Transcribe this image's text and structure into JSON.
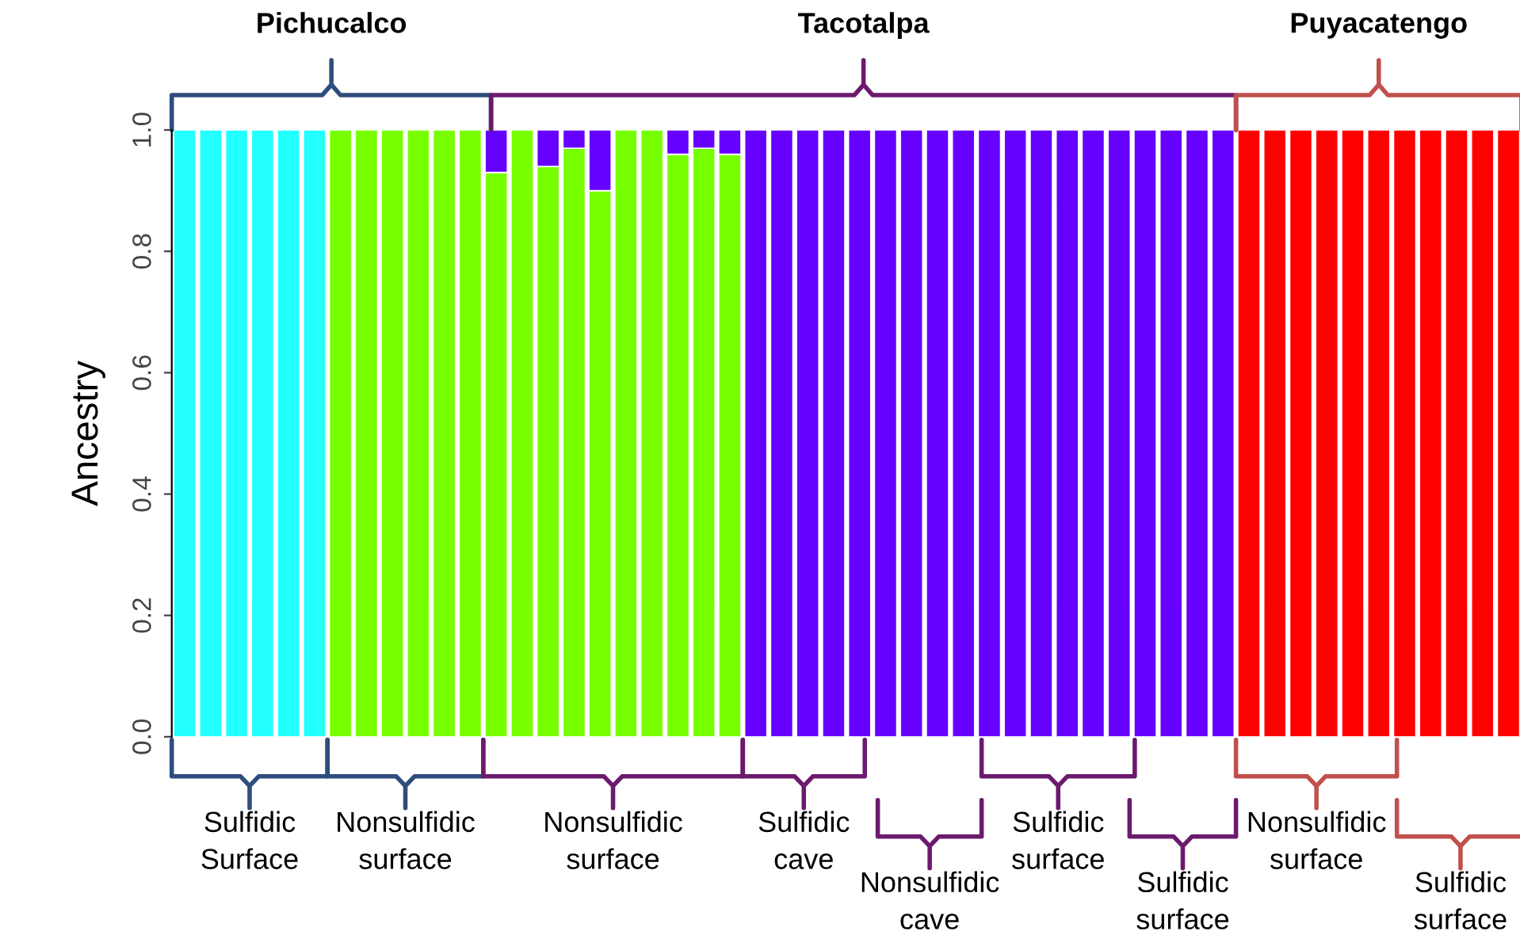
{
  "chart_data": {
    "type": "bar",
    "stacked": true,
    "ylabel": "Ancestry",
    "categories": [
      null,
      null,
      null,
      null,
      null,
      null,
      null,
      null,
      null,
      null,
      null,
      null,
      null,
      null,
      null,
      null,
      null,
      null,
      null,
      null,
      null,
      null,
      null,
      null,
      null,
      null,
      null,
      null,
      null,
      null,
      null,
      null,
      null,
      null,
      null,
      null,
      null,
      null,
      null,
      null,
      null,
      null,
      null,
      null,
      null,
      null,
      null,
      null,
      null,
      null,
      null,
      null
    ],
    "series": [
      {
        "color": "#22ffff",
        "values": [
          1,
          1,
          1,
          1,
          1,
          1,
          0,
          0,
          0,
          0,
          0,
          0,
          0,
          0,
          0,
          0,
          0,
          0,
          0,
          0,
          0,
          0,
          0,
          0,
          0,
          0,
          0,
          0,
          0,
          0,
          0,
          0,
          0,
          0,
          0,
          0,
          0,
          0,
          0,
          0,
          0,
          0,
          0,
          0,
          0,
          0,
          0,
          0,
          0,
          0,
          0,
          0
        ]
      },
      {
        "color": "#77ff00",
        "values": [
          0,
          0,
          0,
          0,
          0,
          0,
          1,
          1,
          1,
          1,
          1,
          1,
          0.93,
          1,
          0.94,
          0.97,
          0.9,
          1,
          1,
          0.96,
          0.97,
          0.96,
          0,
          0,
          0,
          0,
          0,
          0,
          0,
          0,
          0,
          0,
          0,
          0,
          0,
          0,
          0,
          0,
          0,
          0,
          0,
          0,
          0,
          0,
          0,
          0,
          0,
          0,
          0,
          0,
          0,
          0
        ]
      },
      {
        "color": "#6600ff",
        "values": [
          0,
          0,
          0,
          0,
          0,
          0,
          0,
          0,
          0,
          0,
          0,
          0,
          0.07,
          0,
          0.06,
          0.03,
          0.1,
          0,
          0,
          0.04,
          0.03,
          0.04,
          1,
          1,
          1,
          1,
          1,
          1,
          1,
          1,
          1,
          1,
          1,
          1,
          1,
          1,
          1,
          1,
          1,
          1,
          1,
          0,
          0,
          0,
          0,
          0,
          0,
          0,
          0,
          0,
          0,
          0
        ]
      },
      {
        "color": "#ff0000",
        "values": [
          0,
          0,
          0,
          0,
          0,
          0,
          0,
          0,
          0,
          0,
          0,
          0,
          0,
          0,
          0,
          0,
          0,
          0,
          0,
          0,
          0,
          0,
          0,
          0,
          0,
          0,
          0,
          0,
          0,
          0,
          0,
          0,
          0,
          0,
          0,
          0,
          0,
          0,
          0,
          0,
          0,
          1,
          1,
          1,
          1,
          1,
          1,
          1,
          1,
          1,
          1,
          1
        ]
      }
    ],
    "ylim": [
      0,
      1
    ],
    "yticks": [
      {
        "value": 0,
        "label": "0.0"
      },
      {
        "value": 0.2,
        "label": "0.2"
      },
      {
        "value": 0.4,
        "label": "0.4"
      },
      {
        "value": 0.6,
        "label": "0.6"
      },
      {
        "value": 0.8,
        "label": "0.8"
      },
      {
        "value": 1,
        "label": "1.0"
      }
    ],
    "tick_labels": "y",
    "grid": false,
    "legend": false,
    "annotations": [
      "Pichucalco",
      "Tacotalpa",
      "Puyacatengo",
      "Sulfidic\nSurface",
      "Nonsulfidic\nsurface",
      "Nonsulfidic\nsurface",
      "Sulfidic\ncave",
      "Nonsulfidic\ncave",
      "Sulfidic\nsurface",
      "Sulfidic\nsurface",
      "Nonsulfidic\nsurface",
      "Sulfidic\nsurface"
    ]
  }
}
